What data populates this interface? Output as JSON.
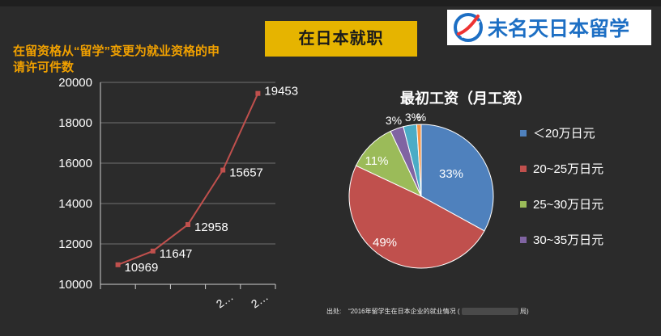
{
  "slide": {
    "heading": "在日本就职",
    "logo_text": "未名天日本留学",
    "left_title": "在留资格从“留学”变更为就业资格的申请许可件数",
    "source_label": "出处:",
    "source_text": "“2016年留学生在日本企业的就业情况",
    "source_tail": "(",
    "source_end": "局)"
  },
  "chart_data": [
    {
      "type": "line",
      "title": "在留资格从“留学”变更为就业资格的申请许可件数",
      "x": [
        "",
        "",
        "",
        "2…",
        "2…"
      ],
      "values": [
        10969,
        11647,
        12958,
        15657,
        19453
      ],
      "data_labels": [
        "10969",
        "11647",
        "12958",
        "15657",
        "19453"
      ],
      "ylim": [
        10000,
        20000
      ],
      "yticks": [
        "10000",
        "12000",
        "14000",
        "16000",
        "18000",
        "20000"
      ],
      "grid": true,
      "color": "#c0504d"
    },
    {
      "type": "pie",
      "title": "最初工资（月工资）",
      "categories": [
        "＜20万日元",
        "20~25万日元",
        "25~30万日元",
        "30~35万日元",
        "",
        ""
      ],
      "values": [
        33,
        49,
        11,
        3,
        3,
        1
      ],
      "labels": [
        "33%",
        "49%",
        "11%",
        "3%",
        "3%",
        "%"
      ],
      "colors": [
        "#4f81bd",
        "#c0504d",
        "#9bbb59",
        "#8064a2",
        "#4bacc6",
        "#f79646"
      ],
      "legend": [
        "＜20万日元",
        "20~25万日元",
        "25~30万日元",
        "30~35万日元"
      ],
      "legend_position": "right"
    }
  ]
}
